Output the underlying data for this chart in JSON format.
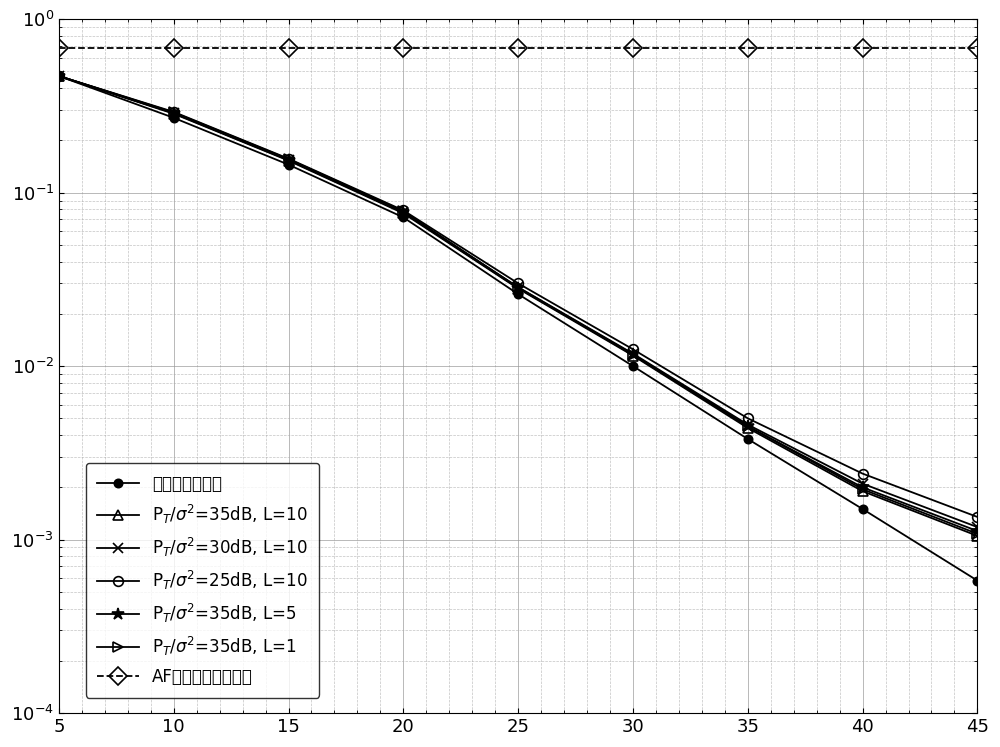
{
  "x": [
    5,
    10,
    15,
    20,
    25,
    30,
    35,
    40,
    45
  ],
  "series": [
    {
      "label": "完全自干扰消除",
      "marker": "o",
      "markersize": 6,
      "markerfacecolor": "black",
      "linestyle": "-",
      "color": "black",
      "y": [
        0.47,
        0.27,
        0.145,
        0.072,
        0.026,
        0.01,
        0.0038,
        0.0015,
        0.00058
      ]
    },
    {
      "label": "P$_T$/$\\sigma^2$=35dB, L=10",
      "marker": "^",
      "markersize": 7,
      "markerfacecolor": "none",
      "linestyle": "-",
      "color": "black",
      "y": [
        0.47,
        0.285,
        0.153,
        0.076,
        0.028,
        0.0115,
        0.0044,
        0.0019,
        0.00105
      ]
    },
    {
      "label": "P$_T$/$\\sigma^2$=30dB, L=10",
      "marker": "x",
      "markersize": 7,
      "markerfacecolor": "black",
      "linestyle": "-",
      "color": "black",
      "y": [
        0.47,
        0.288,
        0.155,
        0.077,
        0.0285,
        0.0118,
        0.0046,
        0.0021,
        0.00118
      ]
    },
    {
      "label": "P$_T$/$\\sigma^2$=25dB, L=10",
      "marker": "o",
      "markersize": 7,
      "markerfacecolor": "none",
      "linestyle": "-",
      "color": "black",
      "y": [
        0.47,
        0.292,
        0.157,
        0.079,
        0.03,
        0.0125,
        0.005,
        0.0024,
        0.00135
      ]
    },
    {
      "label": "P$_T$/$\\sigma^2$=35dB, L=5",
      "marker": "*",
      "markersize": 9,
      "markerfacecolor": "black",
      "linestyle": "-",
      "color": "black",
      "y": [
        0.47,
        0.287,
        0.154,
        0.077,
        0.0282,
        0.0117,
        0.0045,
        0.002,
        0.00112
      ]
    },
    {
      "label": "P$_T$/$\\sigma^2$=35dB, L=1",
      "marker": ">",
      "markersize": 7,
      "markerfacecolor": "none",
      "linestyle": "-",
      "color": "black",
      "y": [
        0.47,
        0.29,
        0.156,
        0.078,
        0.0284,
        0.0116,
        0.0045,
        0.00195,
        0.00108
      ]
    },
    {
      "label": "AF差分双向传输方法",
      "marker": "D",
      "markersize": 9,
      "markerfacecolor": "none",
      "linestyle": "--",
      "color": "black",
      "y": [
        0.68,
        0.68,
        0.68,
        0.68,
        0.68,
        0.68,
        0.68,
        0.68,
        0.68
      ]
    }
  ],
  "xlim": [
    5,
    45
  ],
  "ylim": [
    0.0001,
    1.0
  ],
  "xticks": [
    5,
    10,
    15,
    20,
    25,
    30,
    35,
    40,
    45
  ],
  "legend_loc": "lower left",
  "background_color": "#ffffff"
}
